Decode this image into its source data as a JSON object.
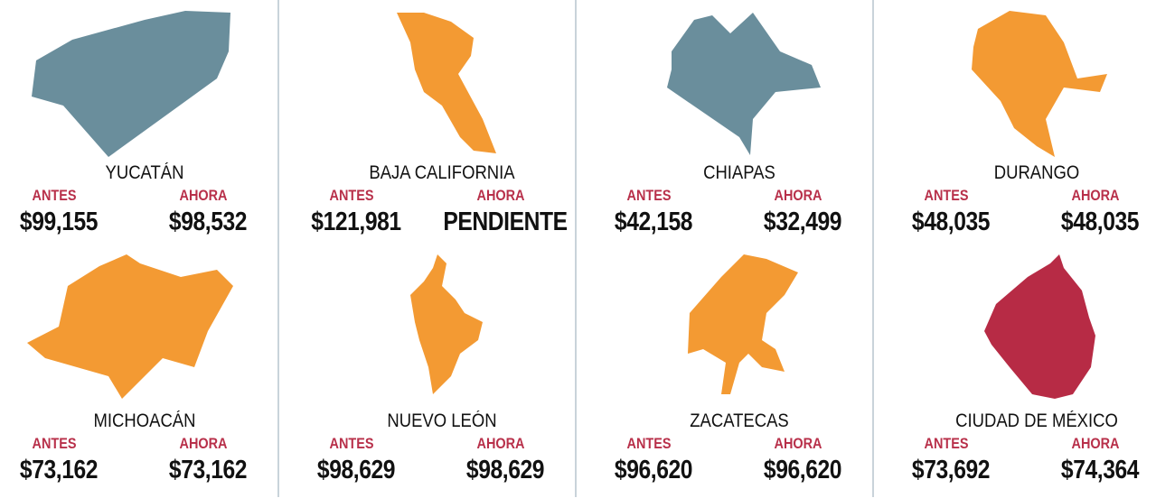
{
  "labels": {
    "before": "ANTES",
    "now": "AHORA"
  },
  "colors": {
    "slate": "#6a8e9c",
    "orange": "#f39a33",
    "red": "#b72b45",
    "label": "#b8304a"
  },
  "states": [
    {
      "name": "YUCATÁN",
      "antes": "$99,155",
      "ahora": "$98,532",
      "color": "#6a8e9c"
    },
    {
      "name": "BAJA CALIFORNIA",
      "antes": "$121,981",
      "ahora": "PENDIENTE",
      "color": "#f39a33"
    },
    {
      "name": "CHIAPAS",
      "antes": "$42,158",
      "ahora": "$32,499",
      "color": "#6a8e9c"
    },
    {
      "name": "DURANGO",
      "antes": "$48,035",
      "ahora": "$48,035",
      "color": "#f39a33"
    },
    {
      "name": "MICHOACÁN",
      "antes": "$73,162",
      "ahora": "$73,162",
      "color": "#f39a33"
    },
    {
      "name": "NUEVO LEÓN",
      "antes": "$98,629",
      "ahora": "$98,629",
      "color": "#f39a33"
    },
    {
      "name": "ZACATECAS",
      "antes": "$96,620",
      "ahora": "$96,620",
      "color": "#f39a33"
    },
    {
      "name": "CIUDAD DE MÉXICO",
      "antes": "$73,692",
      "ahora": "$74,364",
      "color": "#b72b45"
    }
  ]
}
